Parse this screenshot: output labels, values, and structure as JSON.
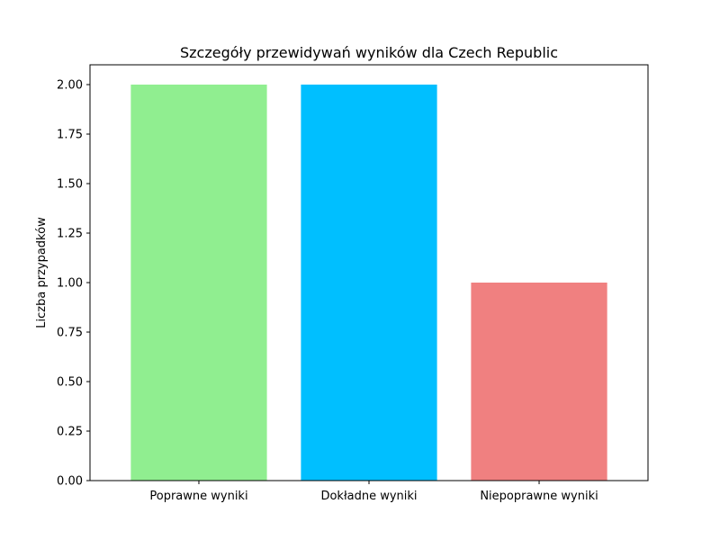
{
  "chart_data": {
    "type": "bar",
    "title": "Szczegóły przewidywań wyników dla Czech Republic",
    "xlabel": "",
    "ylabel": "Liczba przypadków",
    "categories": [
      "Poprawne wyniki",
      "Dokładne wyniki",
      "Niepoprawne wyniki"
    ],
    "values": [
      2,
      2,
      1
    ],
    "colors": [
      "#90ee90",
      "#00bfff",
      "#f08080"
    ],
    "ylim": [
      0,
      2.1
    ],
    "yticks": [
      "0.00",
      "0.25",
      "0.50",
      "0.75",
      "1.00",
      "1.25",
      "1.50",
      "1.75",
      "2.00"
    ],
    "grid": false,
    "legend": "none"
  }
}
